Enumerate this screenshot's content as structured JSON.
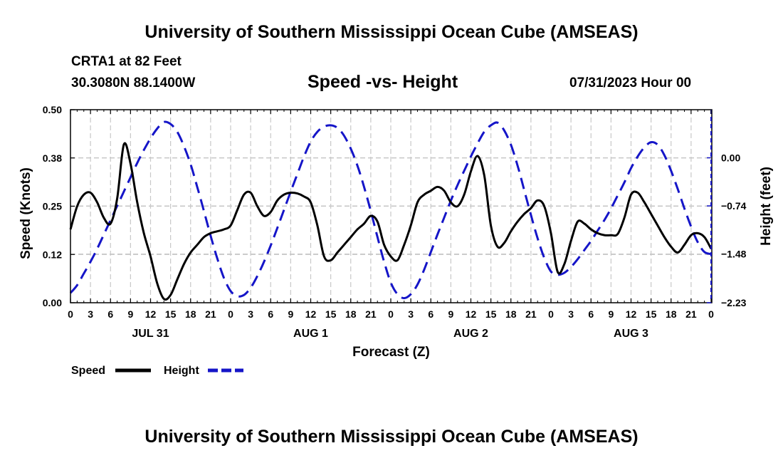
{
  "header": {
    "title": "University of Southern Mississippi Ocean Cube (AMSEAS)",
    "station": "CRTA1 at 82 Feet",
    "coords": "30.3080N  88.1400W",
    "chart_title": "Speed -vs- Height",
    "datetime": "07/31/2023 Hour 00"
  },
  "footer": {
    "title": "University of Southern Mississippi Ocean Cube (AMSEAS)"
  },
  "colors": {
    "speed": "#000000",
    "height": "#1515c8",
    "grid": "#c8c8c8"
  },
  "chart_data": {
    "type": "line",
    "title": "Speed -vs- Height",
    "xlabel": "Forecast (Z)",
    "ylabel": "Speed (Knots)",
    "y2label": "Height (feet)",
    "xlim": [
      0,
      96
    ],
    "ylim": [
      0,
      0.5
    ],
    "y2lim": [
      -2.23,
      0.74
    ],
    "x_ticks": [
      0,
      3,
      6,
      9,
      12,
      15,
      18,
      21,
      24,
      27,
      30,
      33,
      36,
      39,
      42,
      45,
      48,
      51,
      54,
      57,
      60,
      63,
      66,
      69,
      72,
      75,
      78,
      81,
      84,
      87,
      90,
      93,
      96
    ],
    "x_tick_labels": [
      "0",
      "3",
      "6",
      "9",
      "12",
      "15",
      "18",
      "21",
      "0",
      "3",
      "6",
      "9",
      "12",
      "15",
      "18",
      "21",
      "0",
      "3",
      "6",
      "9",
      "12",
      "15",
      "18",
      "21",
      "0",
      "3",
      "6",
      "9",
      "12",
      "15",
      "18",
      "21",
      "0"
    ],
    "day_labels": [
      {
        "x": 12,
        "label": "JUL 31"
      },
      {
        "x": 36,
        "label": "AUG 1"
      },
      {
        "x": 60,
        "label": "AUG 2"
      },
      {
        "x": 84,
        "label": "AUG 3"
      }
    ],
    "y_ticks": [
      0.0,
      0.125,
      0.25,
      0.375,
      0.5
    ],
    "y_tick_labels": [
      "0.00",
      "0.12",
      "0.25",
      "0.38",
      "0.50"
    ],
    "y2_ticks": [
      -2.23,
      -1.48,
      -0.74,
      0.0
    ],
    "y2_tick_labels": [
      "−2.23",
      "−1.48",
      "−0.74",
      "0.00"
    ],
    "grid": true,
    "legend": [
      {
        "name": "Speed",
        "style": "solid"
      },
      {
        "name": "Height",
        "style": "dashed"
      }
    ],
    "series": [
      {
        "name": "Speed",
        "axis": "left",
        "style": "solid",
        "x": [
          0,
          1,
          2,
          3,
          4,
          5,
          6,
          7,
          8,
          9,
          10,
          11,
          12,
          13,
          14,
          15,
          16,
          17,
          18,
          19,
          20,
          21,
          22,
          23,
          24,
          25,
          26,
          27,
          28,
          29,
          30,
          31,
          32,
          33,
          34,
          35,
          36,
          37,
          38,
          39,
          40,
          41,
          42,
          43,
          44,
          45,
          46,
          47,
          48,
          49,
          50,
          51,
          52,
          53,
          54,
          55,
          56,
          57,
          58,
          59,
          60,
          61,
          62,
          63,
          64,
          65,
          66,
          67,
          68,
          69,
          70,
          71,
          72,
          73,
          74,
          75,
          76,
          77,
          78,
          79,
          80,
          81,
          82,
          83,
          84,
          85,
          86,
          87,
          88,
          89,
          90,
          91,
          92,
          93,
          94,
          95,
          96
        ],
        "values": [
          0.19,
          0.25,
          0.28,
          0.285,
          0.26,
          0.22,
          0.205,
          0.27,
          0.41,
          0.36,
          0.26,
          0.18,
          0.12,
          0.05,
          0.01,
          0.02,
          0.06,
          0.1,
          0.13,
          0.15,
          0.17,
          0.18,
          0.185,
          0.19,
          0.2,
          0.24,
          0.28,
          0.285,
          0.25,
          0.225,
          0.235,
          0.265,
          0.28,
          0.285,
          0.283,
          0.275,
          0.26,
          0.2,
          0.12,
          0.11,
          0.13,
          0.15,
          0.17,
          0.19,
          0.205,
          0.225,
          0.21,
          0.15,
          0.12,
          0.11,
          0.15,
          0.2,
          0.26,
          0.28,
          0.29,
          0.3,
          0.29,
          0.26,
          0.25,
          0.28,
          0.34,
          0.38,
          0.33,
          0.2,
          0.145,
          0.155,
          0.185,
          0.21,
          0.23,
          0.245,
          0.265,
          0.25,
          0.18,
          0.08,
          0.1,
          0.16,
          0.21,
          0.205,
          0.19,
          0.18,
          0.175,
          0.175,
          0.178,
          0.22,
          0.28,
          0.285,
          0.26,
          0.23,
          0.2,
          0.17,
          0.145,
          0.13,
          0.15,
          0.175,
          0.18,
          0.17,
          0.14
        ]
      },
      {
        "name": "Height",
        "axis": "right",
        "style": "dashed",
        "x": [
          0,
          1,
          2,
          3,
          4,
          5,
          6,
          7,
          8,
          9,
          10,
          11,
          12,
          13,
          14,
          15,
          16,
          17,
          18,
          19,
          20,
          21,
          22,
          23,
          24,
          25,
          26,
          27,
          28,
          29,
          30,
          31,
          32,
          33,
          34,
          35,
          36,
          37,
          38,
          39,
          40,
          41,
          42,
          43,
          44,
          45,
          46,
          47,
          48,
          49,
          50,
          51,
          52,
          53,
          54,
          55,
          56,
          57,
          58,
          59,
          60,
          61,
          62,
          63,
          64,
          65,
          66,
          67,
          68,
          69,
          70,
          71,
          72,
          73,
          74,
          75,
          76,
          77,
          78,
          79,
          80,
          81,
          82,
          83,
          84,
          85,
          86,
          87,
          88,
          89,
          90,
          91,
          92,
          93,
          94,
          95,
          96
        ],
        "values": [
          -2.08,
          -1.96,
          -1.78,
          -1.6,
          -1.4,
          -1.18,
          -0.96,
          -0.74,
          -0.52,
          -0.3,
          -0.08,
          0.12,
          0.3,
          0.45,
          0.55,
          0.52,
          0.4,
          0.18,
          -0.1,
          -0.45,
          -0.82,
          -1.2,
          -1.55,
          -1.85,
          -2.05,
          -2.13,
          -2.11,
          -2.0,
          -1.82,
          -1.6,
          -1.35,
          -1.08,
          -0.8,
          -0.52,
          -0.25,
          0.02,
          0.25,
          0.4,
          0.48,
          0.5,
          0.46,
          0.34,
          0.14,
          -0.12,
          -0.45,
          -0.82,
          -1.22,
          -1.6,
          -1.92,
          -2.1,
          -2.16,
          -2.1,
          -1.95,
          -1.72,
          -1.45,
          -1.18,
          -0.92,
          -0.66,
          -0.42,
          -0.2,
          0.02,
          0.22,
          0.4,
          0.5,
          0.54,
          0.42,
          0.2,
          -0.12,
          -0.5,
          -0.88,
          -1.24,
          -1.54,
          -1.75,
          -1.8,
          -1.77,
          -1.68,
          -1.56,
          -1.42,
          -1.28,
          -1.12,
          -0.96,
          -0.78,
          -0.58,
          -0.38,
          -0.16,
          0.02,
          0.16,
          0.24,
          0.2,
          0.04,
          -0.2,
          -0.48,
          -0.78,
          -1.06,
          -1.3,
          -1.45,
          -1.48
        ]
      }
    ]
  }
}
